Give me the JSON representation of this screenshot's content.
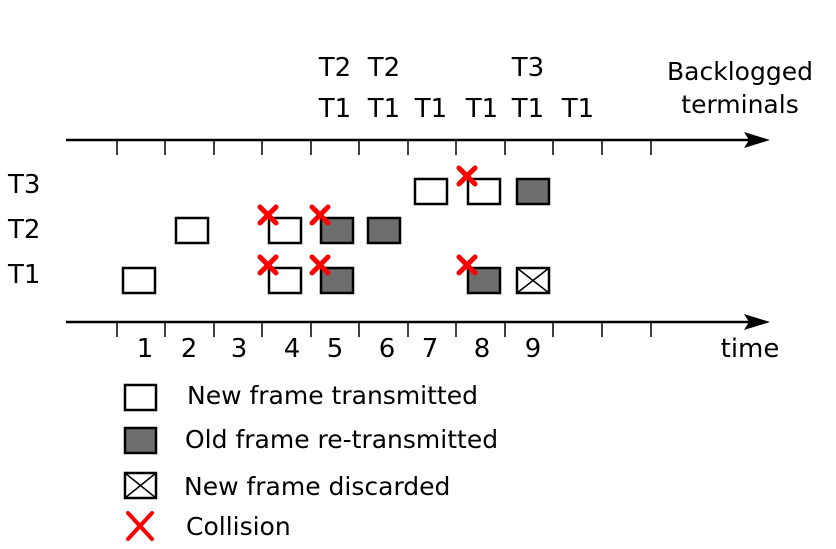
{
  "backlog": {
    "title_line1": "Backlogged",
    "title_line2": "terminals",
    "upper_row": [
      {
        "slot": 5,
        "label": "T2"
      },
      {
        "slot": 6,
        "label": "T2"
      },
      {
        "slot": 9,
        "label": "T3"
      }
    ],
    "lower_row": [
      {
        "slot": 5,
        "label": "T1"
      },
      {
        "slot": 6,
        "label": "T1"
      },
      {
        "slot": 7,
        "label": "T1"
      },
      {
        "slot": 8,
        "label": "T1"
      },
      {
        "slot": 9,
        "label": "T1"
      },
      {
        "slot": 10,
        "label": "T1"
      }
    ]
  },
  "terminals": [
    "T3",
    "T2",
    "T1"
  ],
  "time_axis": {
    "label": "time",
    "slot_numbers": [
      "1",
      "2",
      "3",
      "4",
      "5",
      "6",
      "7",
      "8",
      "9"
    ]
  },
  "frames": [
    {
      "terminal": "T1",
      "slot": 1,
      "kind": "new"
    },
    {
      "terminal": "T2",
      "slot": 2,
      "kind": "new"
    },
    {
      "terminal": "T1",
      "slot": 4,
      "kind": "new",
      "collision": true
    },
    {
      "terminal": "T2",
      "slot": 4,
      "kind": "new",
      "collision": true
    },
    {
      "terminal": "T1",
      "slot": 5,
      "kind": "old",
      "collision": true
    },
    {
      "terminal": "T2",
      "slot": 5,
      "kind": "old",
      "collision": true
    },
    {
      "terminal": "T2",
      "slot": 6,
      "kind": "old"
    },
    {
      "terminal": "T3",
      "slot": 7,
      "kind": "new"
    },
    {
      "terminal": "T1",
      "slot": 8,
      "kind": "old",
      "collision": true
    },
    {
      "terminal": "T3",
      "slot": 8,
      "kind": "new",
      "collision": true
    },
    {
      "terminal": "T1",
      "slot": 9,
      "kind": "discarded"
    },
    {
      "terminal": "T3",
      "slot": 9,
      "kind": "old"
    }
  ],
  "legend": [
    {
      "kind": "new",
      "label": "New frame transmitted"
    },
    {
      "kind": "old",
      "label": "Old frame re-transmitted"
    },
    {
      "kind": "discarded",
      "label": "New frame discarded"
    },
    {
      "kind": "collision",
      "label": "Collision"
    }
  ],
  "colors": {
    "old_frame_fill": "#6e6e6e",
    "collision": "#ff0000",
    "line": "#000000"
  }
}
